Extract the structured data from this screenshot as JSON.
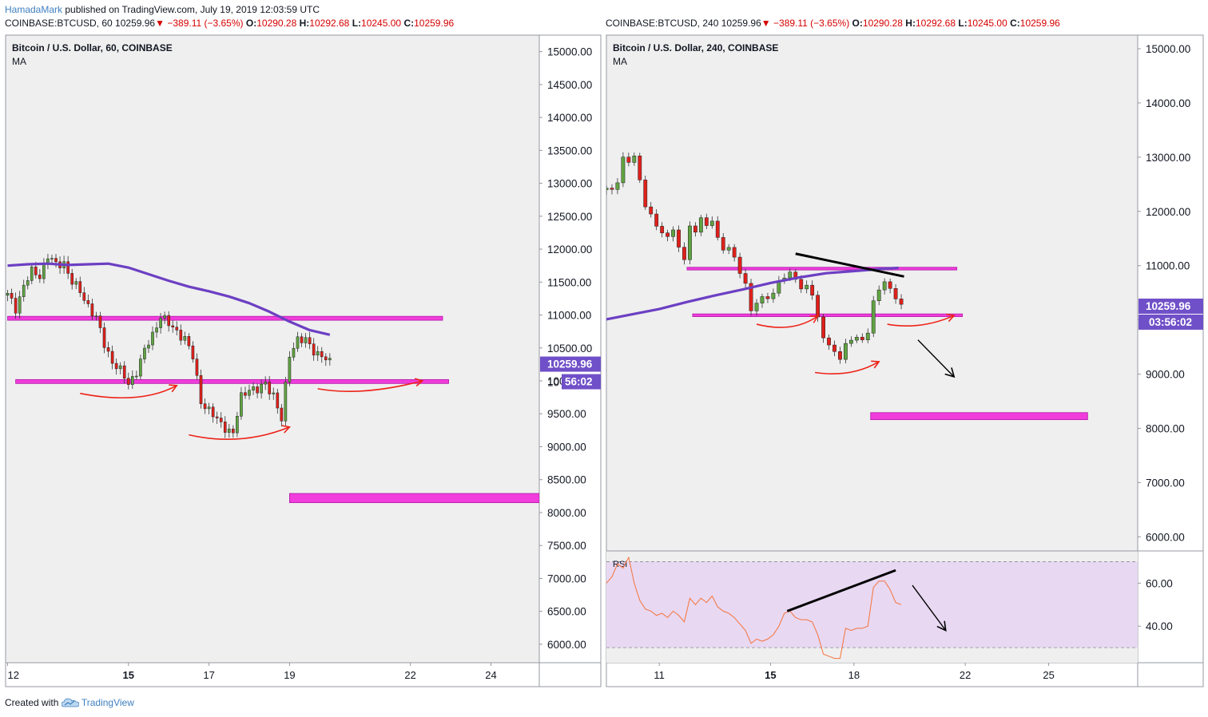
{
  "header": {
    "author": "HamadaMark",
    "published": "published on TradingView.com, July 19, 2019 12:03:59 UTC"
  },
  "left_quote": {
    "symbol": "COINBASE:BTCUSD, 60",
    "last": "10259.96",
    "change": "−389.11 (−3.65%)",
    "o_label": "O:",
    "o": "10290.28",
    "h_label": "H:",
    "h": "10292.68",
    "l_label": "L:",
    "l": "10245.00",
    "c_label": "C:",
    "c": "10259.96"
  },
  "right_quote": {
    "symbol": "COINBASE:BTCUSD, 240",
    "last": "10259.96",
    "change": "−389.11 (−3.65%)",
    "o_label": "O:",
    "o": "10290.28",
    "h_label": "H:",
    "h": "10292.68",
    "l_label": "L:",
    "l": "10245.00",
    "c_label": "C:",
    "c": "10259.96"
  },
  "footer": {
    "created": "Created with",
    "brand": "TradingView"
  },
  "colors": {
    "up": "#60a342",
    "down": "#e0201b",
    "ma": "#6c3fc3",
    "zone": "#f03ddb",
    "annot_red": "#ee2318",
    "rsi": "#f5733a",
    "rsi_band": "#e8d8f2",
    "pane_bg": "#efefef",
    "price_tag": "#7050c8"
  },
  "chart_data": [
    {
      "type": "candlestick",
      "title": "Bitcoin / U.S. Dollar, 60, COINBASE",
      "indicator": "MA",
      "x_tick_labels": [
        "12",
        "15",
        "17",
        "19",
        "22",
        "24"
      ],
      "x_tick_dates": [
        12,
        15,
        17,
        19,
        22,
        24
      ],
      "xlim": [
        11.95,
        25.2
      ],
      "y_tick_labels": [
        "15000.00",
        "14500.00",
        "14000.00",
        "13500.00",
        "13000.00",
        "12500.00",
        "12000.00",
        "11500.00",
        "11000.00",
        "10500.00",
        "10000.00",
        "9500.00",
        "9000.00",
        "8500.00",
        "8000.00",
        "7500.00",
        "7000.00",
        "6500.00",
        "6000.00"
      ],
      "y_ticks": [
        15000,
        14500,
        14000,
        13500,
        13000,
        12500,
        12000,
        11500,
        11000,
        10500,
        10000,
        9500,
        9000,
        8500,
        8000,
        7500,
        7000,
        6500,
        6000
      ],
      "ylim": [
        5720,
        15250
      ],
      "price_tag": "10259.96",
      "countdown": "56:02",
      "countdown_prefix": "10",
      "closes": [
        [
          12.0,
          11300
        ],
        [
          12.2,
          11100
        ],
        [
          12.4,
          11450
        ],
        [
          12.6,
          11650
        ],
        [
          12.8,
          11600
        ],
        [
          13.0,
          11900
        ],
        [
          13.2,
          11750
        ],
        [
          13.4,
          11800
        ],
        [
          13.6,
          11500
        ],
        [
          13.8,
          11350
        ],
        [
          14.0,
          11150
        ],
        [
          14.2,
          10950
        ],
        [
          14.4,
          10550
        ],
        [
          14.6,
          10300
        ],
        [
          14.8,
          10150
        ],
        [
          15.0,
          9950
        ],
        [
          15.2,
          10150
        ],
        [
          15.4,
          10450
        ],
        [
          15.6,
          10700
        ],
        [
          15.8,
          11000
        ],
        [
          16.0,
          10850
        ],
        [
          16.2,
          10750
        ],
        [
          16.4,
          10650
        ],
        [
          16.6,
          10350
        ],
        [
          16.8,
          9700
        ],
        [
          17.0,
          9550
        ],
        [
          17.2,
          9400
        ],
        [
          17.4,
          9300
        ],
        [
          17.6,
          9200
        ],
        [
          17.8,
          9750
        ],
        [
          18.0,
          9900
        ],
        [
          18.2,
          9850
        ],
        [
          18.4,
          9950
        ],
        [
          18.6,
          9800
        ],
        [
          18.8,
          9400
        ],
        [
          19.0,
          10400
        ],
        [
          19.2,
          10650
        ],
        [
          19.4,
          10600
        ],
        [
          19.6,
          10450
        ],
        [
          19.8,
          10400
        ],
        [
          20.0,
          10260
        ]
      ],
      "ma_series": [
        [
          12.0,
          11750
        ],
        [
          12.5,
          11770
        ],
        [
          13.0,
          11780
        ],
        [
          13.5,
          11760
        ],
        [
          14.0,
          11770
        ],
        [
          14.5,
          11780
        ],
        [
          15.0,
          11720
        ],
        [
          15.5,
          11620
        ],
        [
          16.0,
          11520
        ],
        [
          16.5,
          11430
        ],
        [
          17.0,
          11360
        ],
        [
          17.5,
          11280
        ],
        [
          18.0,
          11180
        ],
        [
          18.5,
          11050
        ],
        [
          19.0,
          10900
        ],
        [
          19.5,
          10770
        ],
        [
          20.0,
          10700
        ]
      ],
      "zones": [
        {
          "from_x": 12.0,
          "to_x": 22.8,
          "y0": 10920,
          "y1": 10980
        },
        {
          "from_x": 12.2,
          "to_x": 22.95,
          "y0": 9960,
          "y1": 10020
        },
        {
          "from_x": 19.0,
          "to_x": 25.2,
          "y0": 8150,
          "y1": 8290
        }
      ],
      "arrows": [
        {
          "path": [
            [
              13.8,
              9810
            ],
            [
              15.3,
              9630
            ],
            [
              16.2,
              9930
            ]
          ]
        },
        {
          "path": [
            [
              16.5,
              9180
            ],
            [
              17.8,
              9000
            ],
            [
              19.0,
              9300
            ]
          ]
        },
        {
          "path": [
            [
              19.7,
              9880
            ],
            [
              20.8,
              9760
            ],
            [
              22.3,
              10000
            ]
          ]
        }
      ]
    },
    {
      "type": "candlestick",
      "title": "Bitcoin / U.S. Dollar, 240, COINBASE",
      "indicator": "MA",
      "x_tick_labels": [
        "11",
        "15",
        "18",
        "22",
        "25"
      ],
      "x_tick_dates": [
        11,
        15,
        18,
        22,
        25
      ],
      "xlim": [
        9.1,
        28.2
      ],
      "y_tick_labels": [
        "15000.00",
        "14000.00",
        "13000.00",
        "12000.00",
        "11000.00",
        "10000.00",
        "9000.00",
        "8000.00",
        "7000.00",
        "6000.00"
      ],
      "y_ticks": [
        15000,
        14000,
        13000,
        12000,
        11000,
        10000,
        9000,
        8000,
        7000,
        6000
      ],
      "ylim": [
        5740,
        15250
      ],
      "price_tag": "10259.96",
      "countdown": "03:56:02",
      "closes": [
        [
          9.1,
          12400
        ],
        [
          9.3,
          12350
        ],
        [
          9.5,
          12600
        ],
        [
          9.7,
          13000
        ],
        [
          9.9,
          12900
        ],
        [
          10.1,
          13050
        ],
        [
          10.3,
          12500
        ],
        [
          10.5,
          12100
        ],
        [
          10.7,
          12000
        ],
        [
          10.9,
          11700
        ],
        [
          11.1,
          11650
        ],
        [
          11.3,
          11500
        ],
        [
          11.5,
          11600
        ],
        [
          11.7,
          11400
        ],
        [
          11.9,
          11100
        ],
        [
          12.1,
          11750
        ],
        [
          12.3,
          11650
        ],
        [
          12.5,
          11800
        ],
        [
          12.7,
          11750
        ],
        [
          12.9,
          11850
        ],
        [
          13.1,
          11500
        ],
        [
          13.3,
          11350
        ],
        [
          13.5,
          11300
        ],
        [
          13.7,
          11100
        ],
        [
          13.9,
          10900
        ],
        [
          14.1,
          10650
        ],
        [
          14.3,
          10200
        ],
        [
          14.5,
          10350
        ],
        [
          14.7,
          10350
        ],
        [
          14.9,
          10400
        ],
        [
          15.1,
          10500
        ],
        [
          15.3,
          10700
        ],
        [
          15.5,
          10850
        ],
        [
          15.7,
          10850
        ],
        [
          15.9,
          10700
        ],
        [
          16.1,
          10600
        ],
        [
          16.3,
          10600
        ],
        [
          16.5,
          10500
        ],
        [
          16.7,
          10100
        ],
        [
          16.9,
          9600
        ],
        [
          17.1,
          9550
        ],
        [
          17.3,
          9400
        ],
        [
          17.5,
          9250
        ],
        [
          17.7,
          9650
        ],
        [
          17.9,
          9600
        ],
        [
          18.1,
          9650
        ],
        [
          18.3,
          9650
        ],
        [
          18.5,
          9700
        ],
        [
          18.7,
          10400
        ],
        [
          18.9,
          10600
        ],
        [
          19.1,
          10650
        ],
        [
          19.3,
          10600
        ],
        [
          19.5,
          10350
        ],
        [
          19.7,
          10260
        ]
      ],
      "ma_series": [
        [
          9.1,
          10010
        ],
        [
          10.0,
          10100
        ],
        [
          11.0,
          10200
        ],
        [
          12.0,
          10330
        ],
        [
          13.0,
          10450
        ],
        [
          14.0,
          10560
        ],
        [
          15.0,
          10680
        ],
        [
          16.0,
          10780
        ],
        [
          17.0,
          10860
        ],
        [
          18.0,
          10900
        ],
        [
          18.5,
          10920
        ],
        [
          19.0,
          10940
        ],
        [
          19.6,
          10960
        ]
      ],
      "zones": [
        {
          "from_x": 12.0,
          "to_x": 21.7,
          "y0": 10920,
          "y1": 10970
        },
        {
          "from_x": 12.2,
          "to_x": 21.9,
          "y0": 10060,
          "y1": 10110
        },
        {
          "from_x": 18.6,
          "to_x": 26.4,
          "y0": 8160,
          "y1": 8290
        }
      ],
      "black_lines": [
        {
          "path": [
            [
              15.9,
              11220
            ],
            [
              19.8,
              10800
            ]
          ]
        },
        {
          "path": [
            [
              20.3,
              9630
            ],
            [
              21.6,
              8950
            ]
          ],
          "arrow": true
        }
      ],
      "arrows": [
        {
          "path": [
            [
              14.5,
              9920
            ],
            [
              15.8,
              9750
            ],
            [
              16.7,
              10070
            ]
          ]
        },
        {
          "path": [
            [
              16.6,
              9030
            ],
            [
              17.9,
              8930
            ],
            [
              18.9,
              9230
            ]
          ]
        },
        {
          "path": [
            [
              19.2,
              9920
            ],
            [
              20.4,
              9810
            ],
            [
              21.6,
              10080
            ]
          ]
        }
      ],
      "rsi": {
        "label": "RSI",
        "y_tick_labels": [
          "60.00",
          "40.00"
        ],
        "y_ticks": [
          60,
          40
        ],
        "ylim": [
          23,
          75
        ],
        "band": [
          30,
          70
        ],
        "values": [
          [
            9.1,
            60
          ],
          [
            9.3,
            63
          ],
          [
            9.5,
            69
          ],
          [
            9.7,
            67
          ],
          [
            9.9,
            72
          ],
          [
            10.1,
            60
          ],
          [
            10.3,
            52
          ],
          [
            10.5,
            48
          ],
          [
            10.7,
            47
          ],
          [
            10.9,
            45
          ],
          [
            11.1,
            46
          ],
          [
            11.3,
            44
          ],
          [
            11.5,
            47
          ],
          [
            11.7,
            45
          ],
          [
            11.9,
            42
          ],
          [
            12.1,
            53
          ],
          [
            12.3,
            50
          ],
          [
            12.5,
            53
          ],
          [
            12.7,
            51
          ],
          [
            12.9,
            54
          ],
          [
            13.1,
            49
          ],
          [
            13.3,
            47
          ],
          [
            13.5,
            46
          ],
          [
            13.7,
            44
          ],
          [
            13.9,
            41
          ],
          [
            14.1,
            38
          ],
          [
            14.3,
            32
          ],
          [
            14.5,
            34
          ],
          [
            14.7,
            33
          ],
          [
            14.9,
            34
          ],
          [
            15.1,
            36
          ],
          [
            15.3,
            40
          ],
          [
            15.5,
            46
          ],
          [
            15.7,
            47
          ],
          [
            15.9,
            44
          ],
          [
            16.1,
            43
          ],
          [
            16.3,
            43
          ],
          [
            16.5,
            42
          ],
          [
            16.7,
            36
          ],
          [
            16.9,
            27
          ],
          [
            17.1,
            26
          ],
          [
            17.3,
            25
          ],
          [
            17.5,
            25
          ],
          [
            17.7,
            39
          ],
          [
            17.9,
            38
          ],
          [
            18.1,
            39
          ],
          [
            18.3,
            39
          ],
          [
            18.5,
            40
          ],
          [
            18.7,
            58
          ],
          [
            18.9,
            61
          ],
          [
            19.1,
            61
          ],
          [
            19.3,
            57
          ],
          [
            19.5,
            51
          ],
          [
            19.7,
            50
          ]
        ],
        "black_lines": [
          {
            "path": [
              [
                15.6,
                47
              ],
              [
                19.5,
                66
              ]
            ]
          },
          {
            "path": [
              [
                20.1,
                59
              ],
              [
                21.3,
                38
              ]
            ],
            "arrow": true
          }
        ]
      }
    }
  ]
}
